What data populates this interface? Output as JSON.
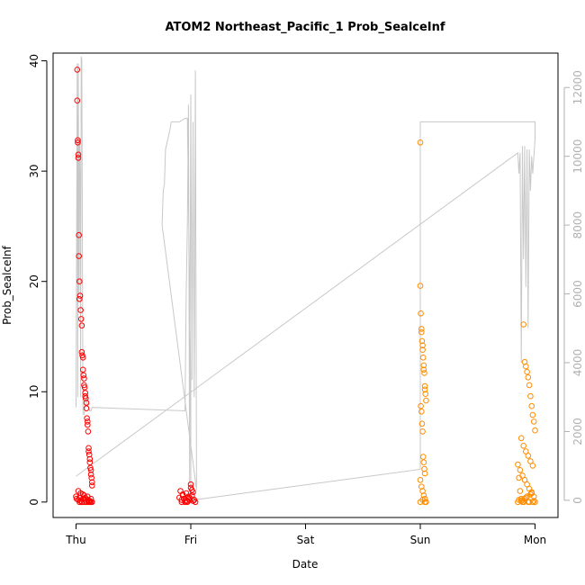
{
  "chart_data": {
    "type": "scatter",
    "title": "ATOM2 Northeast_Pacific_1 Prob_SealceInf",
    "xlabel": "Date",
    "ylabel": "Prob_SealceInf",
    "x_categories": [
      "Thu",
      "Fri",
      "Sat",
      "Sun",
      "Mon"
    ],
    "x_ticks": [
      0,
      1,
      2,
      3,
      4
    ],
    "xlim": [
      -0.2,
      4.2
    ],
    "ylim": [
      -1.4,
      40.7
    ],
    "y_ticks": [
      0,
      10,
      20,
      30,
      40
    ],
    "y2_ticks": [
      0,
      2000,
      4000,
      6000,
      8000,
      10000,
      12000
    ],
    "y2lim": [
      -500,
      13000
    ],
    "grid": false,
    "colors": {
      "red": "#ff0000",
      "orange": "#ff8c00",
      "depth": "#c8c8c8"
    },
    "series": [
      {
        "color": "red",
        "x": [
          0.01,
          0.01,
          0.015,
          0.015,
          0.02,
          0.02,
          0.025,
          0.025,
          0.03,
          0.03,
          0.035,
          0.04,
          0.045,
          0.05,
          0.05,
          0.055,
          0.06,
          0.06,
          0.065,
          0.07,
          0.07,
          0.075,
          0.08,
          0.08,
          0.085,
          0.09,
          0.09,
          0.095,
          0.1,
          0.1,
          0.105,
          0.11,
          0.11,
          0.115,
          0.12,
          0.12,
          0.125,
          0.13,
          0.13,
          0.135,
          0.14,
          0.14,
          0.0,
          0.005,
          0.02,
          0.03,
          0.04,
          0.05,
          0.06,
          0.07,
          0.08,
          0.09,
          0.1,
          0.11,
          0.12,
          0.13,
          0.14,
          0.02,
          0.04,
          0.06,
          0.08,
          0.1,
          0.12,
          0.03,
          0.05,
          0.07,
          0.09,
          0.11,
          0.13,
          0.9,
          0.91,
          0.92,
          0.93,
          0.94,
          0.95,
          0.96,
          0.97,
          0.98,
          0.99,
          1.0,
          1.01,
          1.02,
          1.03,
          1.04,
          0.92,
          0.95,
          0.98,
          1.0,
          1.02,
          0.93,
          0.97,
          0.99,
          1.01,
          1.03
        ],
        "y": [
          39.2,
          36.4,
          32.8,
          32.6,
          31.5,
          31.2,
          22.3,
          24.2,
          20.0,
          18.4,
          18.7,
          17.4,
          16.6,
          16.0,
          13.6,
          13.3,
          13.1,
          12.0,
          11.5,
          11.2,
          10.6,
          10.4,
          9.9,
          9.6,
          9.4,
          9.0,
          8.5,
          7.6,
          7.3,
          7.0,
          6.4,
          4.9,
          4.6,
          4.3,
          3.9,
          3.6,
          3.1,
          2.9,
          2.5,
          2.2,
          1.8,
          1.5,
          0.5,
          0.3,
          0.2,
          0.4,
          0.1,
          0.0,
          0.3,
          0.6,
          0.2,
          0.0,
          0.5,
          0.1,
          0.0,
          0.3,
          0.0,
          1.0,
          0.8,
          0.7,
          0.4,
          0.2,
          0.1,
          0.0,
          0.0,
          0.0,
          0.0,
          0.0,
          0.0,
          0.4,
          1.0,
          0.2,
          0.6,
          0.3,
          0.0,
          0.8,
          0.1,
          0.5,
          0.2,
          1.3,
          0.6,
          0.9,
          0.2,
          0.0,
          0.0,
          0.1,
          0.3,
          1.6,
          0.1,
          0.7,
          0.0,
          0.4,
          1.1,
          0.2
        ]
      },
      {
        "color": "orange",
        "x": [
          3.0,
          3.0,
          3.005,
          3.01,
          3.01,
          3.015,
          3.02,
          3.02,
          3.025,
          3.03,
          3.03,
          3.035,
          3.04,
          3.04,
          3.045,
          3.05,
          3.005,
          3.01,
          3.015,
          3.02,
          3.025,
          3.03,
          3.035,
          3.04,
          3.0,
          3.01,
          3.02,
          3.03,
          3.04,
          3.05,
          3.0,
          3.02,
          3.04,
          3.85,
          3.86,
          3.87,
          3.88,
          3.89,
          3.9,
          3.91,
          3.92,
          3.93,
          3.94,
          3.95,
          3.96,
          3.97,
          3.98,
          3.99,
          4.0,
          3.88,
          3.9,
          3.92,
          3.94,
          3.96,
          3.98,
          3.87,
          3.89,
          3.91,
          3.93,
          3.95,
          3.97,
          3.99,
          3.86,
          3.9,
          3.94,
          3.98,
          3.88,
          3.92,
          3.96,
          4.0,
          3.85,
          3.89,
          3.93,
          3.97,
          3.91,
          3.95,
          3.99
        ],
        "y": [
          32.6,
          19.6,
          17.1,
          15.7,
          15.4,
          14.6,
          14.2,
          13.8,
          13.1,
          12.4,
          12.0,
          11.7,
          10.5,
          10.2,
          9.8,
          9.2,
          8.7,
          8.2,
          7.1,
          6.4,
          4.1,
          3.6,
          3.0,
          2.6,
          2.0,
          1.4,
          1.0,
          0.6,
          0.3,
          0.0,
          0.0,
          0.2,
          0.0,
          3.4,
          2.2,
          1.0,
          0.3,
          0.0,
          16.1,
          12.7,
          12.3,
          11.8,
          11.3,
          10.6,
          9.6,
          8.7,
          7.9,
          7.3,
          6.5,
          5.8,
          5.1,
          4.6,
          4.2,
          3.7,
          3.3,
          2.9,
          2.4,
          2.0,
          1.6,
          1.2,
          0.8,
          0.5,
          0.2,
          0.0,
          0.0,
          0.0,
          0.1,
          0.4,
          0.7,
          0.0,
          0.0,
          0.2,
          0.5,
          0.9,
          0.3,
          0.0,
          0.1
        ]
      }
    ],
    "depth_line": {
      "color": "depth",
      "axis": "right",
      "x": [
        0.0,
        0.01,
        0.015,
        0.02,
        0.025,
        0.03,
        0.035,
        0.04,
        0.045,
        0.05,
        0.06,
        0.07,
        0.08,
        0.09,
        0.1,
        0.11,
        0.12,
        0.13,
        0.14,
        0.95,
        0.96,
        0.97,
        0.98,
        0.99,
        1.0,
        1.01,
        1.02,
        1.03,
        1.04,
        1.05,
        0.75,
        0.76,
        0.77,
        0.78,
        0.8,
        0.82,
        0.83,
        0.85,
        0.9,
        0.95,
        0.97,
        1.0,
        1.0,
        3.0,
        3.0,
        3.0,
        4.0,
        4.0,
        3.98,
        3.97,
        3.96,
        3.95,
        3.94,
        3.93,
        3.92,
        3.91,
        3.9,
        3.89,
        3.88,
        3.87,
        3.86,
        3.85,
        0.0
      ],
      "y": [
        2700,
        12700,
        3000,
        12700,
        6000,
        10500,
        9500,
        3000,
        12900,
        12800,
        2500,
        2500,
        2700,
        3000,
        2800,
        2700,
        2600,
        2600,
        2700,
        2600,
        6000,
        8000,
        11500,
        500,
        11800,
        3500,
        11000,
        3000,
        12500,
        300,
        8000,
        9000,
        9200,
        10200,
        10500,
        10800,
        11000,
        11000,
        11000,
        11100,
        11100,
        3500,
        0,
        900,
        11000,
        11000,
        11000,
        10500,
        9500,
        10000,
        9000,
        10200,
        5000,
        10200,
        6200,
        10300,
        7000,
        10300,
        4000,
        10100,
        9500,
        10100,
        700
      ]
    }
  }
}
